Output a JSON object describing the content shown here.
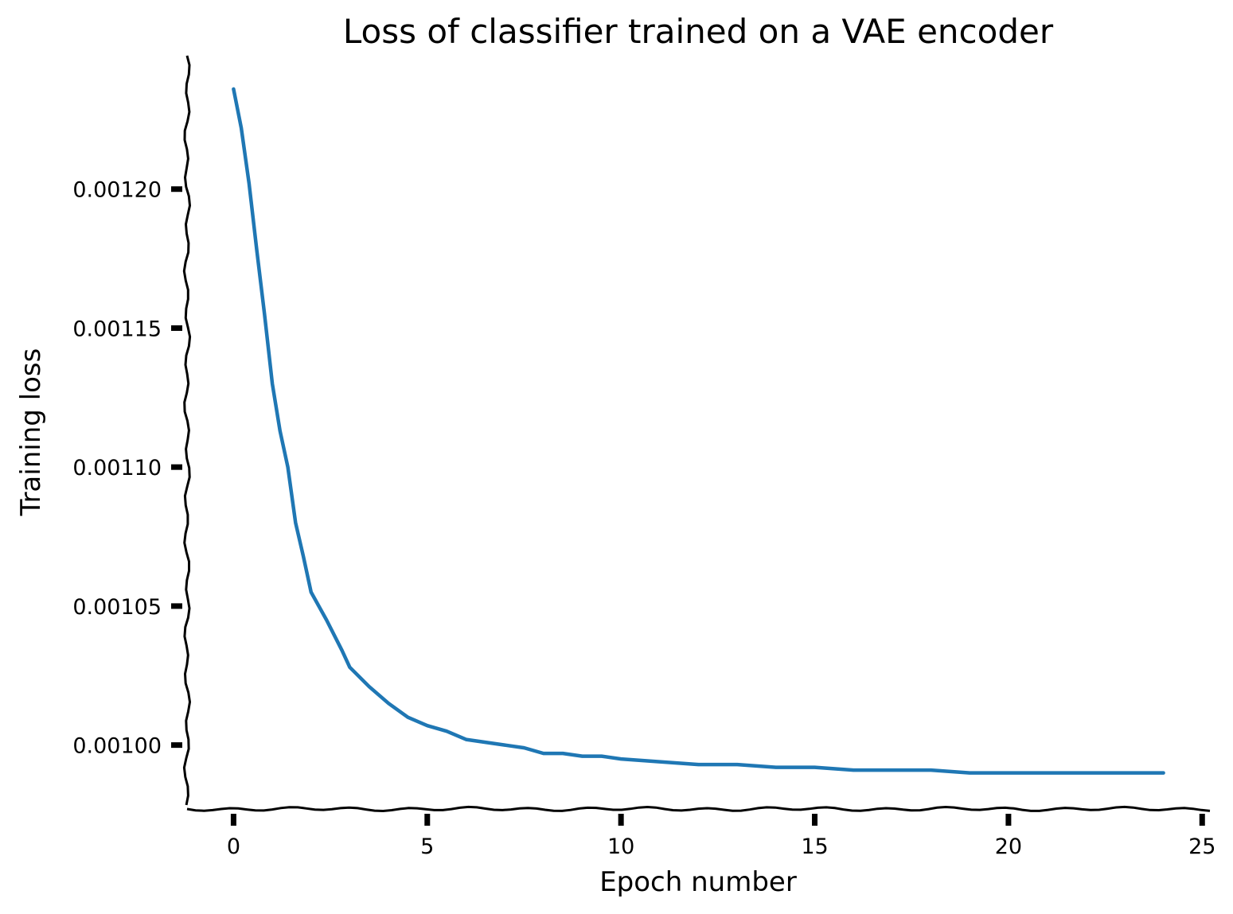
{
  "chart_data": {
    "type": "line",
    "title": "Loss of classifier trained on a VAE encoder",
    "xlabel": "Epoch number",
    "ylabel": "Training loss",
    "xlim": [
      -1.2,
      25.2
    ],
    "ylim": [
      0.000977,
      0.001248
    ],
    "xticks": [
      0,
      5,
      10,
      15,
      20,
      25
    ],
    "xtick_labels": [
      "0",
      "5",
      "10",
      "15",
      "20",
      "25"
    ],
    "yticks": [
      0.001,
      0.00105,
      0.0011,
      0.00115,
      0.0012
    ],
    "ytick_labels": [
      "0.00100",
      "0.00105",
      "0.00110",
      "0.00115",
      "0.00120"
    ],
    "grid": false,
    "line_color": "#1f77b4",
    "series": [
      {
        "x": [
          0,
          0.2,
          0.4,
          0.6,
          0.8,
          1.0,
          1.2,
          1.4,
          1.6,
          1.8,
          2.0,
          2.4,
          2.8,
          3.0,
          3.5,
          4.0,
          4.5,
          5.0,
          5.5,
          6.0,
          6.5,
          7.0,
          7.5,
          8.0,
          8.5,
          9.0,
          9.5,
          10.0,
          11.0,
          12.0,
          13.0,
          14.0,
          15.0,
          16.0,
          17.0,
          18.0,
          19.0,
          20.0,
          21.0,
          22.0,
          23.0,
          24.0
        ],
        "y": [
          0.001236,
          0.001222,
          0.001202,
          0.001178,
          0.001155,
          0.00113,
          0.001113,
          0.0011,
          0.00108,
          0.001068,
          0.001055,
          0.001045,
          0.001034,
          0.001028,
          0.001021,
          0.001015,
          0.00101,
          0.001007,
          0.001005,
          0.001002,
          0.001001,
          0.001,
          0.000999,
          0.000997,
          0.000997,
          0.000996,
          0.000996,
          0.000995,
          0.000994,
          0.000993,
          0.000993,
          0.000992,
          0.000992,
          0.000991,
          0.000991,
          0.000991,
          0.00099,
          0.00099,
          0.00099,
          0.00099,
          0.00099,
          0.00099
        ]
      }
    ]
  }
}
